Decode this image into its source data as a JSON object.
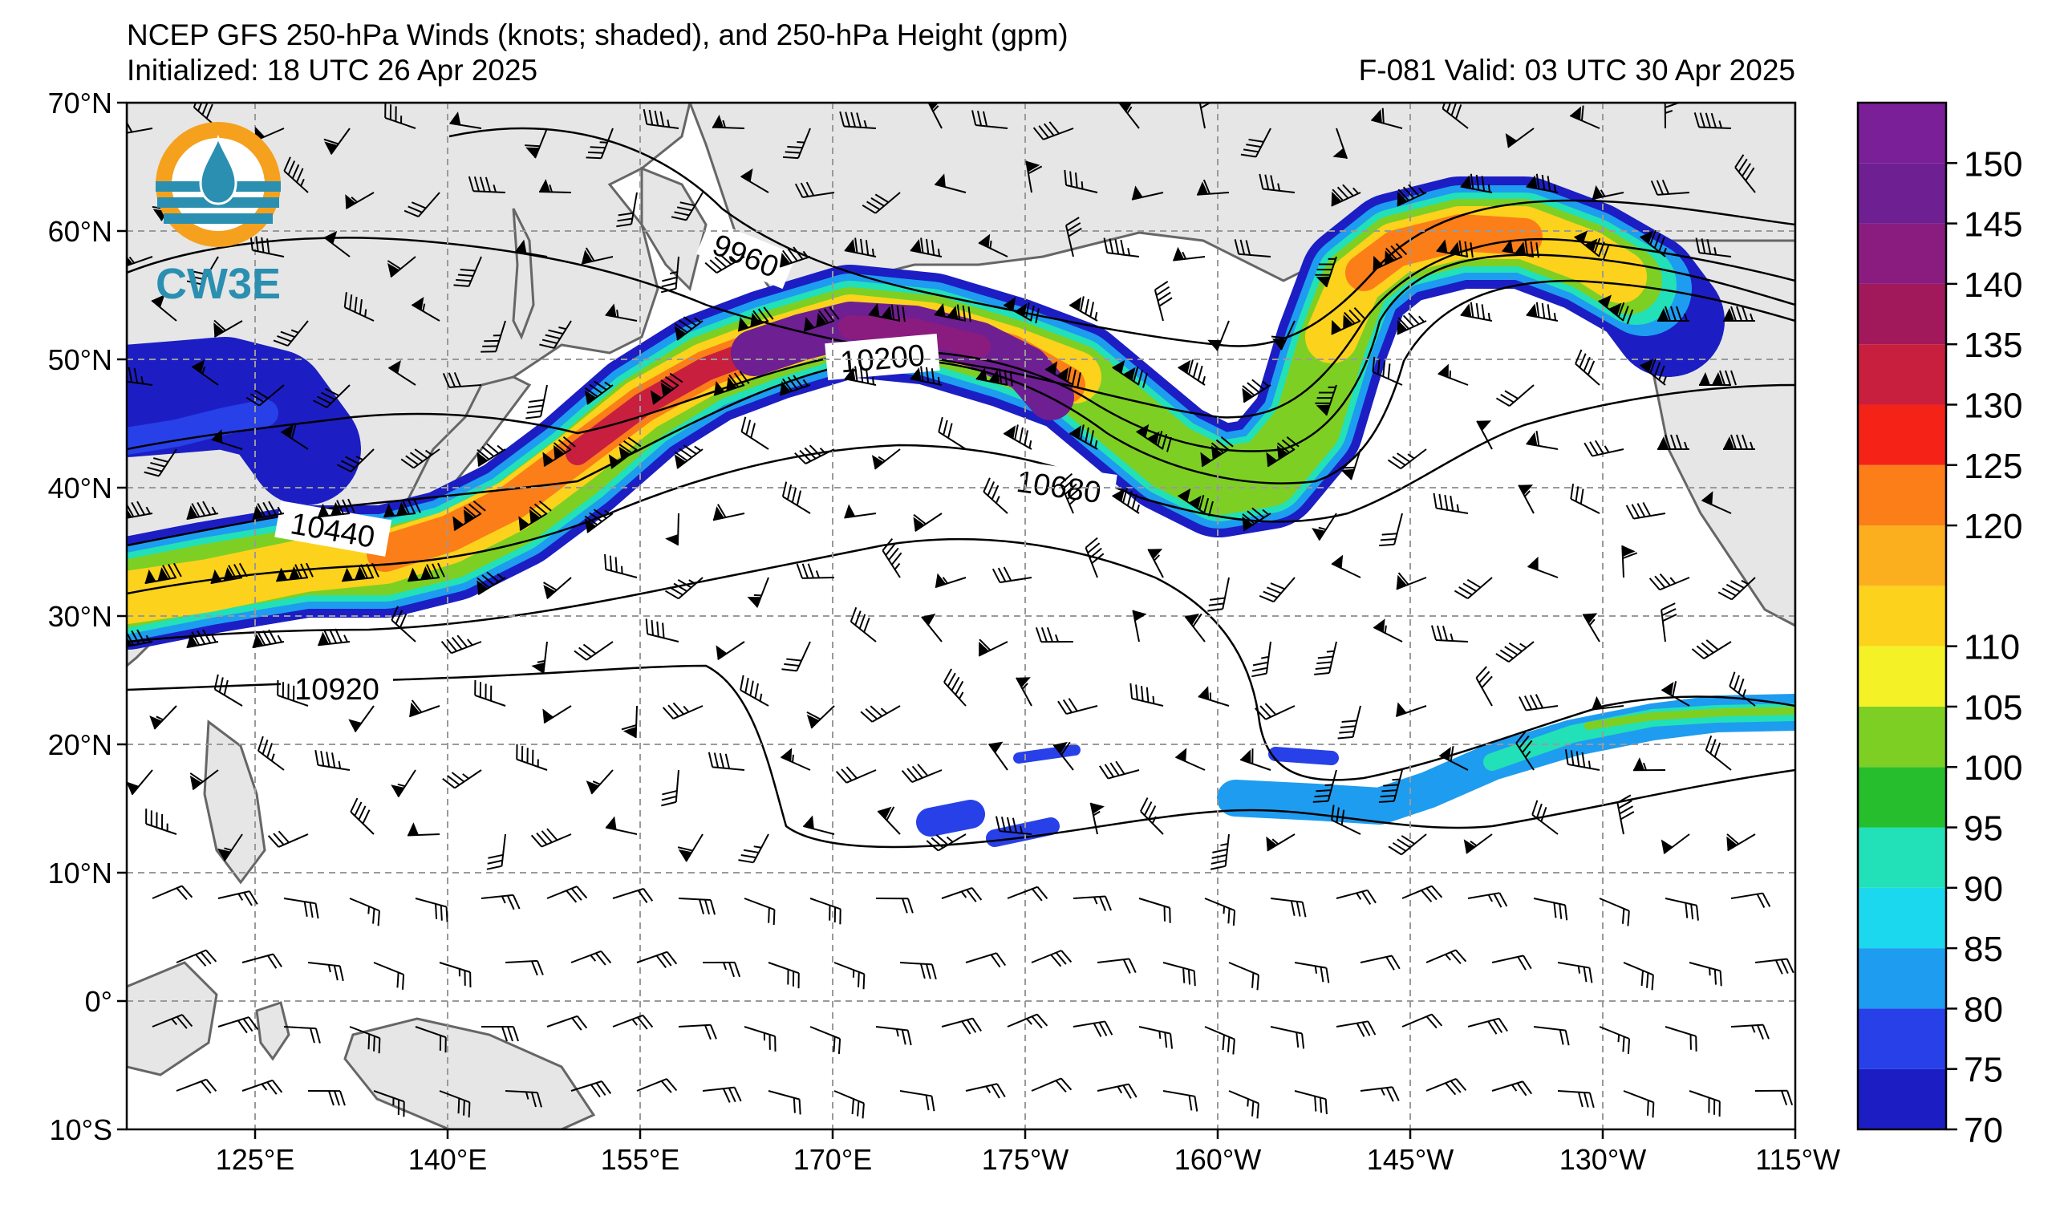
{
  "header": {
    "title": "NCEP GFS 250-hPa Winds (knots; shaded), and 250-hPa Height (gpm)",
    "initialized": "Initialized: 18 UTC 26 Apr 2025",
    "valid": "F-081  Valid: 03 UTC 30 Apr 2025"
  },
  "logo": {
    "text": "CW3E",
    "icon": "cw3e-water-drop-logo"
  },
  "axes": {
    "lat_labels": [
      "70°N",
      "60°N",
      "50°N",
      "40°N",
      "30°N",
      "20°N",
      "10°N",
      "0°",
      "10°S"
    ],
    "lat_values": [
      70,
      60,
      50,
      40,
      30,
      20,
      10,
      0,
      -10
    ],
    "lon_labels": [
      "125°E",
      "140°E",
      "155°E",
      "170°E",
      "175°W",
      "160°W",
      "145°W",
      "130°W",
      "115°W"
    ],
    "lon_values": [
      125,
      140,
      155,
      170,
      185,
      200,
      215,
      230,
      245
    ],
    "lon_range": [
      115,
      245
    ],
    "lat_range": [
      -10,
      70
    ]
  },
  "contour_labels": [
    "9960",
    "10200",
    "10440",
    "10680",
    "10920"
  ],
  "colorbar": {
    "labels": [
      "70",
      "75",
      "80",
      "85",
      "90",
      "95",
      "100",
      "105",
      "110",
      "120",
      "125",
      "130",
      "135",
      "140",
      "145",
      "150"
    ],
    "levels": [
      70,
      75,
      80,
      85,
      90,
      95,
      100,
      105,
      110,
      115,
      120,
      125,
      130,
      135,
      140,
      145,
      150,
      155
    ],
    "colors": [
      "#1c1ec4",
      "#2840e8",
      "#1e9cf0",
      "#1cd8ee",
      "#22e0b8",
      "#26be2c",
      "#7ecf24",
      "#f4f226",
      "#fcd21c",
      "#fbae1e",
      "#fb7e18",
      "#f52218",
      "#c81f3e",
      "#a1195a",
      "#8a1c80",
      "#6e1f92",
      "#7a1f98"
    ]
  },
  "colors": {
    "land": "#e6e6e6",
    "coast": "#666666",
    "grid": "#9a9a9a",
    "contour": "#000000"
  }
}
